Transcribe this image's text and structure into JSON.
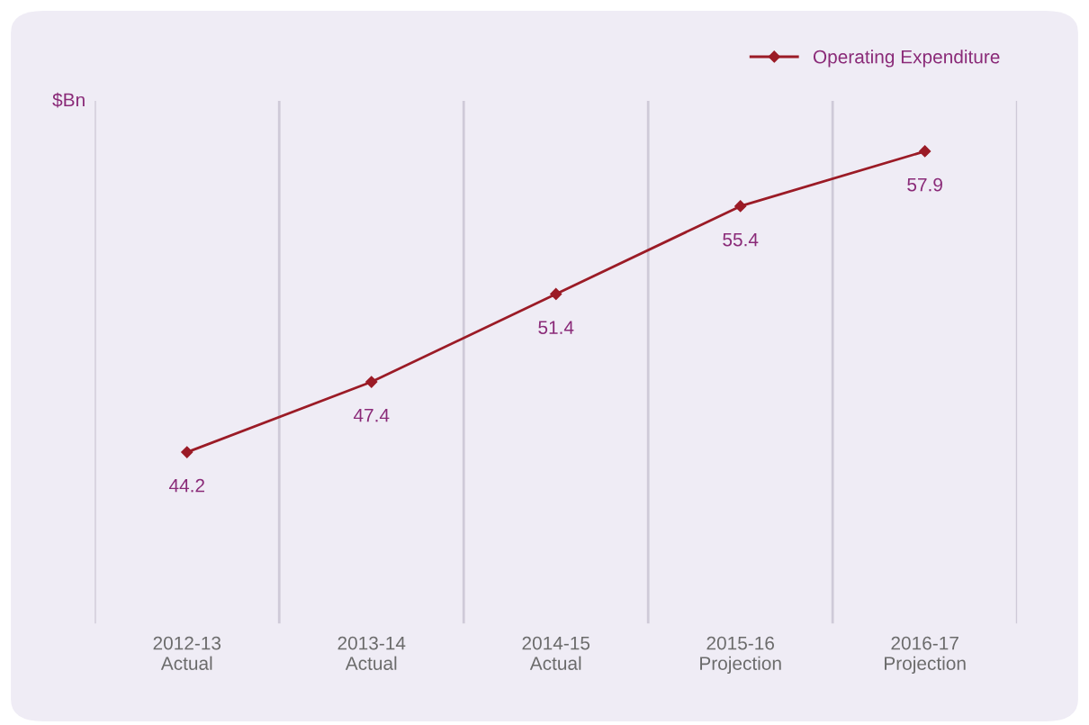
{
  "chart_data": {
    "type": "line",
    "ylabel": "$Bn",
    "categories": [
      "2012-13\nActual",
      "2013-14\nActual",
      "2014-15\nActual",
      "2015-16\nProjection",
      "2016-17\nProjection"
    ],
    "series": [
      {
        "name": "Operating Expenditure",
        "color": "#9b1b26",
        "values": [
          44.2,
          47.4,
          51.4,
          55.4,
          57.9
        ]
      }
    ],
    "ylim": [
      36.4,
      60.2
    ],
    "data_labels": true,
    "marker": "diamond",
    "line_style": "solid",
    "grid": "x",
    "legend": "top right",
    "tick_labels": "x"
  }
}
